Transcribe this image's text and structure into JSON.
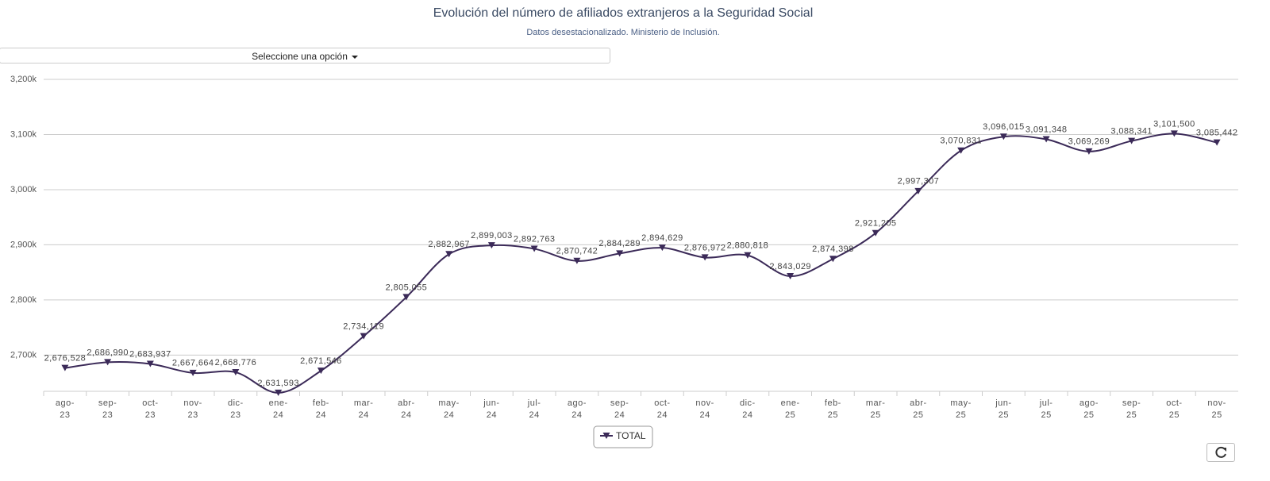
{
  "controls": {
    "dropdown": "Seleccione una opción"
  },
  "chart_data": {
    "type": "line",
    "title": "Evolución del número de afiliados extranjeros a la Seguridad Social",
    "subtitle": "Datos desestacionalizado. Ministerio de Inclusión.",
    "categories": [
      "ago-23",
      "sep-23",
      "oct-23",
      "nov-23",
      "dic-23",
      "ene-24",
      "feb-24",
      "mar-24",
      "abr-24",
      "may-24",
      "jun-24",
      "jul-24",
      "ago-24",
      "sep-24",
      "oct-24",
      "nov-24",
      "dic-24",
      "ene-25",
      "feb-25",
      "mar-25",
      "abr-25",
      "may-25",
      "jun-25",
      "jul-25",
      "ago-25",
      "sep-25",
      "oct-25",
      "nov-25"
    ],
    "series": [
      {
        "name": "TOTAL",
        "color": "#3b2a58",
        "values": [
          2676528,
          2686990,
          2683937,
          2667664,
          2668776,
          2631593,
          2671546,
          2734119,
          2805055,
          2882967,
          2899003,
          2892763,
          2870742,
          2884289,
          2894629,
          2876972,
          2880818,
          2843029,
          2874398,
          2921205,
          2997307,
          3070831,
          3096015,
          3091348,
          3069269,
          3088341,
          3101500,
          3085442
        ],
        "value_labels": [
          "2,676,528",
          "2,686,990",
          "2,683,937",
          "2,667,664",
          "2,668,776",
          "2,631,593",
          "2,671,546",
          "2,734,119",
          "2,805,055",
          "2,882,967",
          "2,899,003",
          "2,892,763",
          "2,870,742",
          "2,884,289",
          "2,894,629",
          "2,876,972",
          "2,880,818",
          "2,843,029",
          "2,874,398",
          "2,921,205",
          "2,997,307",
          "3,070,831",
          "3,096,015",
          "3,091,348",
          "3,069,269",
          "3,088,341",
          "3,101,500",
          "3,085,442"
        ]
      }
    ],
    "ylim": [
      2630000,
      3200000
    ],
    "yticks": [
      {
        "value": 2700000,
        "label": "2,700k"
      },
      {
        "value": 2800000,
        "label": "2,800k"
      },
      {
        "value": 2900000,
        "label": "2,900k"
      },
      {
        "value": 3000000,
        "label": "3,000k"
      },
      {
        "value": 3100000,
        "label": "3,100k"
      },
      {
        "value": 3200000,
        "label": "3,200k"
      }
    ],
    "grid": true,
    "legend": "bottom"
  }
}
